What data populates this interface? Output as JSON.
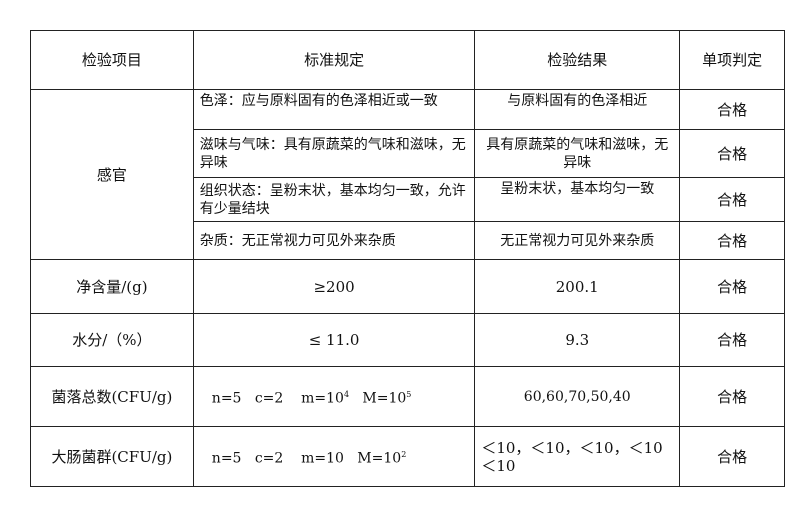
{
  "headers": [
    "检验项目",
    "标准规定",
    "检验结果",
    "单项判定"
  ],
  "sensory": {
    "label": "感官",
    "rows": [
      {
        "standard": "色泽：应与原料固有的色泽相近或一致",
        "result": "与原料固有的色泽相近",
        "verdict": "合格"
      },
      {
        "standard": "滋味与气味：具有原蔬菜的气味和滋味，无异味",
        "result": "具有原蔬菜的气味和滋味，无异味",
        "verdict": "合格"
      },
      {
        "standard": "组织状态：呈粉末状，基本均匀一致，允许有少量结块",
        "result": "呈粉末状，基本均匀一致",
        "verdict": "合格"
      },
      {
        "standard": "杂质：无正常视力可见外来杂质",
        "result": "无正常视力可见外来杂质",
        "verdict": "合格"
      }
    ]
  },
  "net": {
    "label": "净含量/(g)",
    "standard": "≥200",
    "result": "200.1",
    "verdict": "合格"
  },
  "water": {
    "label": "水分/（%）",
    "standard": "≤ 11.0",
    "result": "9.3",
    "verdict": "合格"
  },
  "colony": {
    "label": "菌落总数(CFU/g)",
    "n": "n=5",
    "c": "c=2",
    "m": "m=10",
    "m_exp": "4",
    "M": "M=10",
    "M_exp": "5",
    "result": "60,60,70,50,40",
    "verdict": "合格"
  },
  "coliform": {
    "label": "大肠菌群(CFU/g)",
    "n": "n=5",
    "c": "c=2",
    "m": "m=10",
    "M": "M=10",
    "M_exp": "2",
    "result": "＜10，＜10，＜10，＜10 ＜10",
    "verdict": "合格"
  }
}
